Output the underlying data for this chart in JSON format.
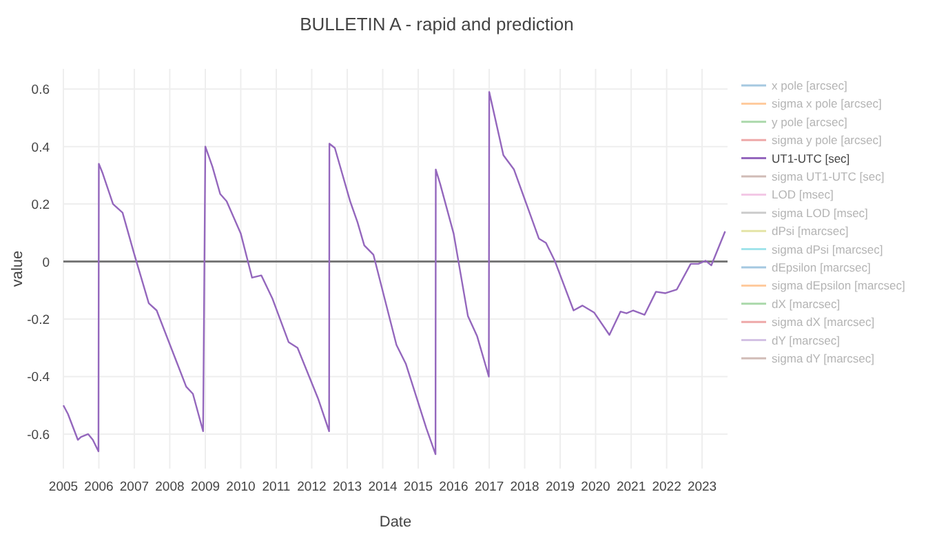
{
  "chart_data": {
    "type": "line",
    "title": "BULLETIN A  - rapid and prediction",
    "xlabel": "Date",
    "ylabel": "value",
    "x": [
      "2005-01-01",
      "2005-02-17",
      "2005-05-30",
      "2005-07-01",
      "2005-09-13",
      "2005-10-31",
      "2005-12-28",
      "2006-01-01",
      "2006-02-06",
      "2006-05-27",
      "2006-09-02",
      "2006-12-28",
      "2007-05-30",
      "2007-08-19",
      "2008-06-18",
      "2008-08-26",
      "2008-12-09",
      "2009-01-01",
      "2009-03-15",
      "2009-06-03",
      "2009-08-08",
      "2010-01-01",
      "2010-04-27",
      "2010-07-31",
      "2010-11-24",
      "2011-05-08",
      "2011-08-08",
      "2012-03-06",
      "2012-06-28",
      "2012-07-01",
      "2012-08-26",
      "2013-01-30",
      "2013-04-16",
      "2013-06-25",
      "2013-09-27",
      "2014-05-22",
      "2014-08-26",
      "2015-03-26",
      "2015-06-28",
      "2015-07-01",
      "2015-08-15",
      "2016-01-01",
      "2016-05-27",
      "2016-08-30",
      "2016-12-28",
      "2017-01-01",
      "2017-05-27",
      "2017-09-13",
      "2018-05-27",
      "2018-08-08",
      "2018-11-10",
      "2019-05-19",
      "2019-08-19",
      "2019-12-16",
      "2020-05-22",
      "2020-09-13",
      "2020-11-14",
      "2021-01-22",
      "2021-05-19",
      "2021-09-13",
      "2021-12-20",
      "2022-04-16",
      "2022-09-06",
      "2022-11-24",
      "2023-02-06",
      "2023-04-06",
      "2023-08-26"
    ],
    "series": [
      {
        "name": "x pole [arcsec]",
        "color": "#1f77b4",
        "values": [
          null,
          null,
          null,
          null,
          null,
          null,
          null,
          null,
          null,
          null,
          null,
          null,
          null,
          null,
          null,
          null,
          null,
          null,
          null,
          null,
          null,
          null,
          null,
          null,
          null,
          null,
          null,
          null,
          null,
          null,
          null,
          null,
          null,
          null,
          null,
          null,
          null,
          null,
          null,
          null,
          null,
          null,
          null,
          null,
          null,
          null,
          null,
          null,
          null,
          null,
          null,
          null,
          null,
          null,
          null,
          null,
          null,
          null,
          null,
          null,
          null,
          null,
          null,
          null,
          null,
          null,
          null
        ]
      },
      {
        "name": "sigma x pole [arcsec]",
        "color": "#ff7f0e",
        "values": [
          null,
          null,
          null,
          null,
          null,
          null,
          null,
          null,
          null,
          null,
          null,
          null,
          null,
          null,
          null,
          null,
          null,
          null,
          null,
          null,
          null,
          null,
          null,
          null,
          null,
          null,
          null,
          null,
          null,
          null,
          null,
          null,
          null,
          null,
          null,
          null,
          null,
          null,
          null,
          null,
          null,
          null,
          null,
          null,
          null,
          null,
          null,
          null,
          null,
          null,
          null,
          null,
          null,
          null,
          null,
          null,
          null,
          null,
          null,
          null,
          null,
          null,
          null,
          null,
          null,
          null,
          null
        ]
      },
      {
        "name": "y pole [arcsec]",
        "color": "#2ca02c",
        "values": [
          null,
          null,
          null,
          null,
          null,
          null,
          null,
          null,
          null,
          null,
          null,
          null,
          null,
          null,
          null,
          null,
          null,
          null,
          null,
          null,
          null,
          null,
          null,
          null,
          null,
          null,
          null,
          null,
          null,
          null,
          null,
          null,
          null,
          null,
          null,
          null,
          null,
          null,
          null,
          null,
          null,
          null,
          null,
          null,
          null,
          null,
          null,
          null,
          null,
          null,
          null,
          null,
          null,
          null,
          null,
          null,
          null,
          null,
          null,
          null,
          null,
          null,
          null,
          null,
          null,
          null,
          null
        ]
      },
      {
        "name": "sigma y pole [arcsec]",
        "color": "#d62728",
        "values": [
          null,
          null,
          null,
          null,
          null,
          null,
          null,
          null,
          null,
          null,
          null,
          null,
          null,
          null,
          null,
          null,
          null,
          null,
          null,
          null,
          null,
          null,
          null,
          null,
          null,
          null,
          null,
          null,
          null,
          null,
          null,
          null,
          null,
          null,
          null,
          null,
          null,
          null,
          null,
          null,
          null,
          null,
          null,
          null,
          null,
          null,
          null,
          null,
          null,
          null,
          null,
          null,
          null,
          null,
          null,
          null,
          null,
          null,
          null,
          null,
          null,
          null,
          null,
          null,
          null,
          null,
          null
        ]
      },
      {
        "name": "UT1-UTC [sec]",
        "color": "#9467bd",
        "values": [
          -0.5,
          -0.53,
          -0.62,
          -0.61,
          -0.6,
          -0.62,
          -0.66,
          0.34,
          0.31,
          0.2,
          0.17,
          0.03,
          -0.145,
          -0.17,
          -0.435,
          -0.46,
          -0.59,
          0.4,
          0.33,
          0.235,
          0.21,
          0.097,
          -0.056,
          -0.048,
          -0.13,
          -0.28,
          -0.3,
          -0.476,
          -0.59,
          0.41,
          0.395,
          0.21,
          0.137,
          0.056,
          0.024,
          -0.29,
          -0.355,
          -0.58,
          -0.67,
          0.32,
          0.27,
          0.097,
          -0.19,
          -0.26,
          -0.4,
          0.59,
          0.37,
          0.32,
          0.08,
          0.065,
          0,
          -0.17,
          -0.153,
          -0.177,
          -0.255,
          -0.174,
          -0.18,
          -0.17,
          -0.185,
          -0.105,
          -0.11,
          -0.097,
          -0.008,
          -0.008,
          0.003,
          -0.013,
          0.105
        ]
      },
      {
        "name": "sigma UT1-UTC [sec]",
        "color": "#8c564b",
        "values": [
          null,
          null,
          null,
          null,
          null,
          null,
          null,
          null,
          null,
          null,
          null,
          null,
          null,
          null,
          null,
          null,
          null,
          null,
          null,
          null,
          null,
          null,
          null,
          null,
          null,
          null,
          null,
          null,
          null,
          null,
          null,
          null,
          null,
          null,
          null,
          null,
          null,
          null,
          null,
          null,
          null,
          null,
          null,
          null,
          null,
          null,
          null,
          null,
          null,
          null,
          null,
          null,
          null,
          null,
          null,
          null,
          null,
          null,
          null,
          null,
          null,
          null,
          null,
          null,
          null,
          null,
          null
        ]
      },
      {
        "name": "LOD [msec]",
        "color": "#e377c2",
        "values": [
          null,
          null,
          null,
          null,
          null,
          null,
          null,
          null,
          null,
          null,
          null,
          null,
          null,
          null,
          null,
          null,
          null,
          null,
          null,
          null,
          null,
          null,
          null,
          null,
          null,
          null,
          null,
          null,
          null,
          null,
          null,
          null,
          null,
          null,
          null,
          null,
          null,
          null,
          null,
          null,
          null,
          null,
          null,
          null,
          null,
          null,
          null,
          null,
          null,
          null,
          null,
          null,
          null,
          null,
          null,
          null,
          null,
          null,
          null,
          null,
          null,
          null,
          null,
          null,
          null,
          null,
          null
        ]
      },
      {
        "name": "sigma LOD [msec]",
        "color": "#7f7f7f",
        "values": [
          null,
          null,
          null,
          null,
          null,
          null,
          null,
          null,
          null,
          null,
          null,
          null,
          null,
          null,
          null,
          null,
          null,
          null,
          null,
          null,
          null,
          null,
          null,
          null,
          null,
          null,
          null,
          null,
          null,
          null,
          null,
          null,
          null,
          null,
          null,
          null,
          null,
          null,
          null,
          null,
          null,
          null,
          null,
          null,
          null,
          null,
          null,
          null,
          null,
          null,
          null,
          null,
          null,
          null,
          null,
          null,
          null,
          null,
          null,
          null,
          null,
          null,
          null,
          null,
          null,
          null,
          null
        ]
      },
      {
        "name": "dPsi [marcsec]",
        "color": "#bcbd22",
        "values": [
          null,
          null,
          null,
          null,
          null,
          null,
          null,
          null,
          null,
          null,
          null,
          null,
          null,
          null,
          null,
          null,
          null,
          null,
          null,
          null,
          null,
          null,
          null,
          null,
          null,
          null,
          null,
          null,
          null,
          null,
          null,
          null,
          null,
          null,
          null,
          null,
          null,
          null,
          null,
          null,
          null,
          null,
          null,
          null,
          null,
          null,
          null,
          null,
          null,
          null,
          null,
          null,
          null,
          null,
          null,
          null,
          null,
          null,
          null,
          null,
          null,
          null,
          null,
          null,
          null,
          null,
          null
        ]
      },
      {
        "name": "sigma dPsi [marcsec]",
        "color": "#17becf",
        "values": [
          null,
          null,
          null,
          null,
          null,
          null,
          null,
          null,
          null,
          null,
          null,
          null,
          null,
          null,
          null,
          null,
          null,
          null,
          null,
          null,
          null,
          null,
          null,
          null,
          null,
          null,
          null,
          null,
          null,
          null,
          null,
          null,
          null,
          null,
          null,
          null,
          null,
          null,
          null,
          null,
          null,
          null,
          null,
          null,
          null,
          null,
          null,
          null,
          null,
          null,
          null,
          null,
          null,
          null,
          null,
          null,
          null,
          null,
          null,
          null,
          null,
          null,
          null,
          null,
          null,
          null,
          null
        ]
      },
      {
        "name": "dEpsilon [marcsec]",
        "color": "#1f77b4",
        "values": [
          null,
          null,
          null,
          null,
          null,
          null,
          null,
          null,
          null,
          null,
          null,
          null,
          null,
          null,
          null,
          null,
          null,
          null,
          null,
          null,
          null,
          null,
          null,
          null,
          null,
          null,
          null,
          null,
          null,
          null,
          null,
          null,
          null,
          null,
          null,
          null,
          null,
          null,
          null,
          null,
          null,
          null,
          null,
          null,
          null,
          null,
          null,
          null,
          null,
          null,
          null,
          null,
          null,
          null,
          null,
          null,
          null,
          null,
          null,
          null,
          null,
          null,
          null,
          null,
          null,
          null,
          null
        ]
      },
      {
        "name": "sigma dEpsilon [marcsec]",
        "color": "#ff7f0e",
        "values": [
          null,
          null,
          null,
          null,
          null,
          null,
          null,
          null,
          null,
          null,
          null,
          null,
          null,
          null,
          null,
          null,
          null,
          null,
          null,
          null,
          null,
          null,
          null,
          null,
          null,
          null,
          null,
          null,
          null,
          null,
          null,
          null,
          null,
          null,
          null,
          null,
          null,
          null,
          null,
          null,
          null,
          null,
          null,
          null,
          null,
          null,
          null,
          null,
          null,
          null,
          null,
          null,
          null,
          null,
          null,
          null,
          null,
          null,
          null,
          null,
          null,
          null,
          null,
          null,
          null,
          null,
          null
        ]
      },
      {
        "name": "dX [marcsec]",
        "color": "#2ca02c",
        "values": [
          null,
          null,
          null,
          null,
          null,
          null,
          null,
          null,
          null,
          null,
          null,
          null,
          null,
          null,
          null,
          null,
          null,
          null,
          null,
          null,
          null,
          null,
          null,
          null,
          null,
          null,
          null,
          null,
          null,
          null,
          null,
          null,
          null,
          null,
          null,
          null,
          null,
          null,
          null,
          null,
          null,
          null,
          null,
          null,
          null,
          null,
          null,
          null,
          null,
          null,
          null,
          null,
          null,
          null,
          null,
          null,
          null,
          null,
          null,
          null,
          null,
          null,
          null,
          null,
          null,
          null,
          null
        ]
      },
      {
        "name": "sigma dX [marcsec]",
        "color": "#d62728",
        "values": [
          null,
          null,
          null,
          null,
          null,
          null,
          null,
          null,
          null,
          null,
          null,
          null,
          null,
          null,
          null,
          null,
          null,
          null,
          null,
          null,
          null,
          null,
          null,
          null,
          null,
          null,
          null,
          null,
          null,
          null,
          null,
          null,
          null,
          null,
          null,
          null,
          null,
          null,
          null,
          null,
          null,
          null,
          null,
          null,
          null,
          null,
          null,
          null,
          null,
          null,
          null,
          null,
          null,
          null,
          null,
          null,
          null,
          null,
          null,
          null,
          null,
          null,
          null,
          null,
          null,
          null,
          null
        ]
      },
      {
        "name": "dY [marcsec]",
        "color": "#9467bd",
        "values": [
          null,
          null,
          null,
          null,
          null,
          null,
          null,
          null,
          null,
          null,
          null,
          null,
          null,
          null,
          null,
          null,
          null,
          null,
          null,
          null,
          null,
          null,
          null,
          null,
          null,
          null,
          null,
          null,
          null,
          null,
          null,
          null,
          null,
          null,
          null,
          null,
          null,
          null,
          null,
          null,
          null,
          null,
          null,
          null,
          null,
          null,
          null,
          null,
          null,
          null,
          null,
          null,
          null,
          null,
          null,
          null,
          null,
          null,
          null,
          null,
          null,
          null,
          null,
          null,
          null,
          null,
          null
        ]
      },
      {
        "name": "sigma dY [marcsec]",
        "color": "#8c564b",
        "values": [
          null,
          null,
          null,
          null,
          null,
          null,
          null,
          null,
          null,
          null,
          null,
          null,
          null,
          null,
          null,
          null,
          null,
          null,
          null,
          null,
          null,
          null,
          null,
          null,
          null,
          null,
          null,
          null,
          null,
          null,
          null,
          null,
          null,
          null,
          null,
          null,
          null,
          null,
          null,
          null,
          null,
          null,
          null,
          null,
          null,
          null,
          null,
          null,
          null,
          null,
          null,
          null,
          null,
          null,
          null,
          null,
          null,
          null,
          null,
          null,
          null,
          null,
          null,
          null,
          null,
          null,
          null
        ]
      }
    ],
    "xlim": [
      "2005-01-01",
      "2023-09-20"
    ],
    "xticks": [
      "2005",
      "2006",
      "2007",
      "2008",
      "2009",
      "2010",
      "2011",
      "2012",
      "2013",
      "2014",
      "2015",
      "2016",
      "2017",
      "2018",
      "2019",
      "2020",
      "2021",
      "2022",
      "2023"
    ],
    "ylim": [
      -0.72,
      0.67
    ],
    "yticks": [
      -0.6,
      -0.4,
      -0.2,
      0,
      0.2,
      0.4,
      0.6
    ],
    "grid": true,
    "legend": "right",
    "marker": "none",
    "line_style": "solid"
  }
}
